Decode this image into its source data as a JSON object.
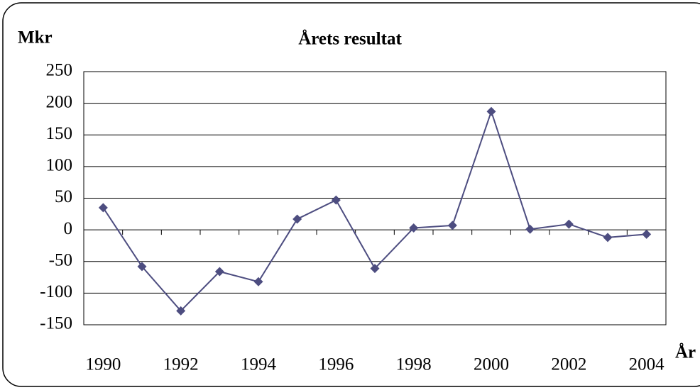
{
  "chart_data": {
    "type": "line",
    "title": "Årets resultat",
    "ylabel": "Mkr",
    "xlabel": "År",
    "categories": [
      "1990",
      null,
      "1992",
      null,
      "1994",
      null,
      "1996",
      null,
      "1998",
      null,
      "2000",
      null,
      "2002",
      null,
      "2004"
    ],
    "values": [
      35,
      -58,
      -128,
      -66,
      -82,
      17,
      47,
      -61,
      3,
      7,
      187,
      1,
      9,
      -12,
      -7
    ],
    "color": "#4d4d80",
    "ylim": [
      -150,
      250
    ],
    "yticks": [
      -150,
      -100,
      -50,
      0,
      50,
      100,
      150,
      200,
      250
    ],
    "grid": true
  }
}
